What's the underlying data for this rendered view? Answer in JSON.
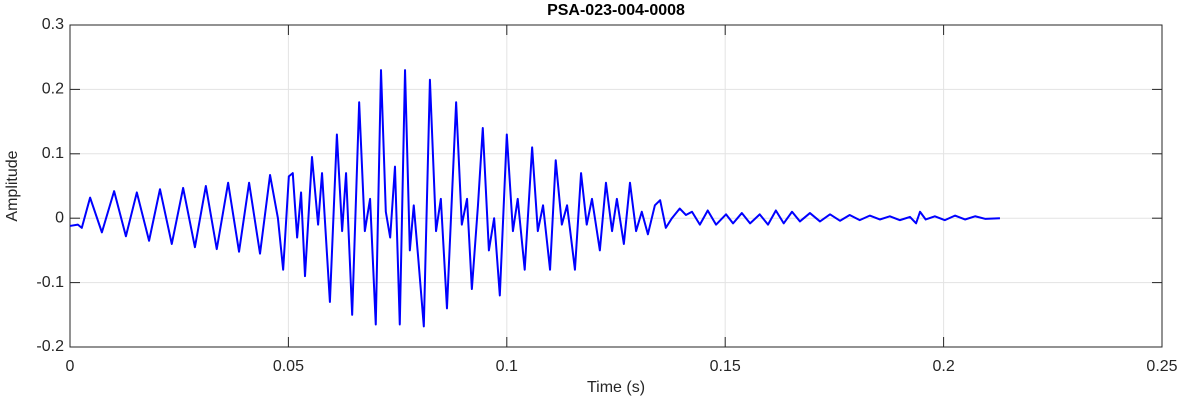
{
  "chart_data": {
    "type": "line",
    "title": "PSA-023-004-0008",
    "xlabel": "Time (s)",
    "ylabel": "Amplitude",
    "x": [
      0,
      0.0018,
      0.0027,
      0.0046,
      0.0073,
      0.0101,
      0.0128,
      0.0153,
      0.0181,
      0.0206,
      0.0233,
      0.0259,
      0.0286,
      0.0311,
      0.0336,
      0.0362,
      0.0387,
      0.041,
      0.0435,
      0.0458,
      0.0476,
      0.0488,
      0.0501,
      0.051,
      0.052,
      0.0529,
      0.0538,
      0.0554,
      0.0568,
      0.0577,
      0.0595,
      0.0611,
      0.0623,
      0.0632,
      0.0646,
      0.0662,
      0.0675,
      0.0687,
      0.07,
      0.0712,
      0.0723,
      0.0733,
      0.0744,
      0.0755,
      0.0767,
      0.0778,
      0.0787,
      0.0797,
      0.081,
      0.0824,
      0.0838,
      0.0849,
      0.0863,
      0.0884,
      0.0897,
      0.0909,
      0.092,
      0.0934,
      0.0945,
      0.0959,
      0.0971,
      0.0984,
      0.1,
      0.1014,
      0.1025,
      0.1041,
      0.1058,
      0.1071,
      0.1083,
      0.1099,
      0.1112,
      0.1126,
      0.1138,
      0.1156,
      0.117,
      0.1183,
      0.1195,
      0.1213,
      0.1227,
      0.1241,
      0.1252,
      0.1268,
      0.1282,
      0.1296,
      0.1309,
      0.1323,
      0.1339,
      0.1351,
      0.1364,
      0.1378,
      0.1396,
      0.141,
      0.1424,
      0.1442,
      0.146,
      0.1479,
      0.1502,
      0.1518,
      0.1538,
      0.1557,
      0.1579,
      0.1598,
      0.1616,
      0.1634,
      0.1653,
      0.1671,
      0.1694,
      0.1717,
      0.174,
      0.1763,
      0.1785,
      0.1808,
      0.1831,
      0.1854,
      0.1877,
      0.19,
      0.1923,
      0.1937,
      0.1946,
      0.1959,
      0.198,
      0.2003,
      0.2026,
      0.2049,
      0.2072,
      0.2095,
      0.2129
    ],
    "series": [
      {
        "color": "#0000ff",
        "values": [
          -0.012,
          -0.01,
          -0.015,
          0.032,
          -0.022,
          0.042,
          -0.028,
          0.04,
          -0.035,
          0.045,
          -0.04,
          0.047,
          -0.045,
          0.05,
          -0.048,
          0.055,
          -0.052,
          0.055,
          -0.055,
          0.067,
          0.0,
          -0.08,
          0.065,
          0.07,
          -0.03,
          0.04,
          -0.09,
          0.095,
          -0.01,
          0.07,
          -0.13,
          0.13,
          -0.02,
          0.07,
          -0.15,
          0.18,
          -0.02,
          0.03,
          -0.165,
          0.23,
          0.01,
          -0.03,
          0.08,
          -0.165,
          0.23,
          -0.05,
          0.02,
          -0.06,
          -0.168,
          0.215,
          -0.02,
          0.03,
          -0.14,
          0.18,
          -0.01,
          0.03,
          -0.11,
          0.02,
          0.14,
          -0.05,
          0.0,
          -0.12,
          0.13,
          -0.02,
          0.03,
          -0.08,
          0.11,
          -0.02,
          0.02,
          -0.08,
          0.09,
          -0.01,
          0.02,
          -0.08,
          0.07,
          -0.01,
          0.03,
          -0.05,
          0.055,
          -0.02,
          0.03,
          -0.04,
          0.055,
          -0.02,
          0.01,
          -0.025,
          0.02,
          0.028,
          -0.015,
          0.0,
          0.015,
          0.005,
          0.01,
          -0.01,
          0.012,
          -0.01,
          0.006,
          -0.008,
          0.008,
          -0.008,
          0.006,
          -0.01,
          0.012,
          -0.008,
          0.01,
          -0.005,
          0.008,
          -0.005,
          0.006,
          -0.004,
          0.005,
          -0.003,
          0.004,
          -0.002,
          0.003,
          -0.003,
          0.002,
          -0.008,
          0.01,
          -0.002,
          0.003,
          -0.003,
          0.004,
          -0.002,
          0.003,
          -0.001,
          0.0
        ]
      }
    ],
    "xlim": [
      0,
      0.25
    ],
    "xticks": [
      0,
      0.05,
      0.1,
      0.15,
      0.2,
      0.25
    ],
    "ylim": [
      -0.2,
      0.3
    ],
    "yticks": [
      -0.2,
      -0.1,
      0,
      0.1,
      0.2,
      0.3
    ],
    "grid": true
  }
}
